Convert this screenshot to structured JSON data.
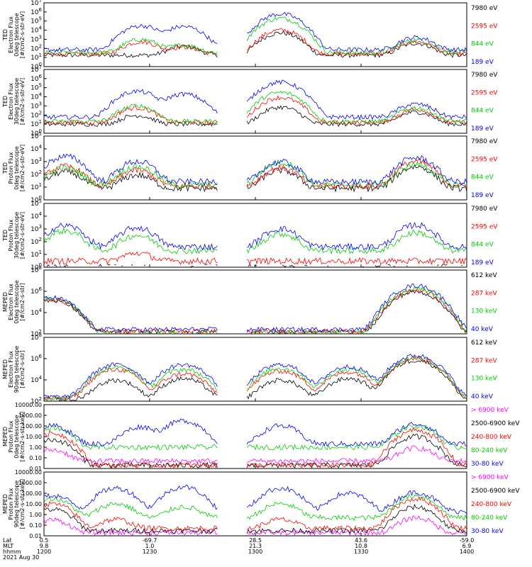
{
  "chart_data": [
    {
      "type": "line",
      "instrument": "TED",
      "ylabel": [
        "TED",
        "Electron Flux",
        "0deg telescope",
        "[#/cm2-s-str-eV]"
      ],
      "ylim": [
        1,
        10000000
      ],
      "yscale": "log",
      "ytick_labels": [
        "10^0",
        "10^1",
        "10^2",
        "10^3",
        "10^4",
        "10^5",
        "10^6",
        "10^7"
      ],
      "series": [
        {
          "name": "7980 eV",
          "color": "#000000",
          "base": 18,
          "peaks": [
            [
              0.33,
              150
            ],
            [
              0.56,
              5000
            ],
            [
              0.88,
              350
            ]
          ]
        },
        {
          "name": "2595 eV",
          "color": "#ff0000",
          "base": 25,
          "peaks": [
            [
              0.23,
              500
            ],
            [
              0.33,
              120
            ],
            [
              0.56,
              10000
            ],
            [
              0.88,
              500
            ]
          ]
        },
        {
          "name": "844 eV",
          "color": "#00cc00",
          "base": 35,
          "peaks": [
            [
              0.23,
              900
            ],
            [
              0.33,
              200
            ],
            [
              0.56,
              200000
            ],
            [
              0.88,
              800
            ]
          ]
        },
        {
          "name": "189 eV",
          "color": "#0000ff",
          "base": 70,
          "peaks": [
            [
              0.23,
              30000
            ],
            [
              0.33,
              25000
            ],
            [
              0.56,
              600000
            ],
            [
              0.88,
              1500
            ]
          ]
        }
      ]
    },
    {
      "type": "line",
      "instrument": "TED",
      "ylabel": [
        "TED",
        "Electron Flux",
        "30deg telescope",
        "[#/cm2-s-str-eV]"
      ],
      "ylim": [
        1,
        10000000
      ],
      "yscale": "log",
      "ytick_labels": [
        "10^0",
        "10^1",
        "10^2",
        "10^3",
        "10^4",
        "10^5",
        "10^6",
        "10^7"
      ],
      "series": [
        {
          "name": "7980 eV",
          "color": "#000000",
          "base": 10,
          "peaks": [
            [
              0.22,
              80
            ],
            [
              0.56,
              700
            ],
            [
              0.88,
              200
            ]
          ]
        },
        {
          "name": "2595 eV",
          "color": "#ff0000",
          "base": 15,
          "peaks": [
            [
              0.22,
              600
            ],
            [
              0.56,
              8000
            ],
            [
              0.88,
              400
            ]
          ]
        },
        {
          "name": "844 eV",
          "color": "#00cc00",
          "base": 20,
          "peaks": [
            [
              0.22,
              1000
            ],
            [
              0.56,
              30000
            ],
            [
              0.88,
              600
            ]
          ]
        },
        {
          "name": "189 eV",
          "color": "#0000ff",
          "base": 60,
          "peaks": [
            [
              0.22,
              40000
            ],
            [
              0.33,
              20000
            ],
            [
              0.56,
              400000
            ],
            [
              0.88,
              1500
            ]
          ]
        }
      ]
    },
    {
      "type": "line",
      "instrument": "TED",
      "ylabel": [
        "TED",
        "Proton Flux",
        "0deg telescope",
        "[#/cm2-s-str-eV]"
      ],
      "ylim": [
        1,
        100000
      ],
      "yscale": "log",
      "ytick_labels": [
        "10^0",
        "10^1",
        "10^2",
        "10^3",
        "10^4",
        "10^5"
      ],
      "series": [
        {
          "name": "7980 eV",
          "color": "#000000",
          "base": 8,
          "peaks": [
            [
              0.05,
              150
            ],
            [
              0.22,
              80
            ],
            [
              0.56,
              200
            ],
            [
              0.88,
              400
            ]
          ]
        },
        {
          "name": "2595 eV",
          "color": "#ff0000",
          "base": 12,
          "peaks": [
            [
              0.05,
              400
            ],
            [
              0.22,
              200
            ],
            [
              0.56,
              300
            ],
            [
              0.88,
              1000
            ]
          ]
        },
        {
          "name": "844 eV",
          "color": "#00cc00",
          "base": 15,
          "peaks": [
            [
              0.05,
              300
            ],
            [
              0.22,
              400
            ],
            [
              0.56,
              800
            ],
            [
              0.88,
              600
            ]
          ]
        },
        {
          "name": "189 eV",
          "color": "#0000ff",
          "base": 25,
          "peaks": [
            [
              0.05,
              2500
            ],
            [
              0.22,
              1000
            ],
            [
              0.56,
              900
            ],
            [
              0.88,
              2000
            ]
          ]
        }
      ]
    },
    {
      "type": "line",
      "instrument": "TED",
      "ylabel": [
        "TED",
        "Proton Flux",
        "30deg telescope",
        "[#/cm2-s-str-eV]"
      ],
      "ylim": [
        1,
        100000
      ],
      "yscale": "log",
      "ytick_labels": [
        "10^0",
        "10^1",
        "10^2",
        "10^3",
        "10^4",
        "10^5"
      ],
      "series": [
        {
          "name": "7980 eV",
          "color": "#000000",
          "base": 1,
          "peaks": []
        },
        {
          "name": "2595 eV",
          "color": "#ff0000",
          "base": 3,
          "peaks": [
            [
              0.22,
              10
            ]
          ]
        },
        {
          "name": "844 eV",
          "color": "#00cc00",
          "base": 20,
          "peaks": [
            [
              0.05,
              700
            ],
            [
              0.22,
              300
            ],
            [
              0.56,
              400
            ],
            [
              0.88,
              500
            ]
          ]
        },
        {
          "name": "189 eV",
          "color": "#0000ff",
          "base": 40,
          "peaks": [
            [
              0.05,
              1800
            ],
            [
              0.22,
              1200
            ],
            [
              0.56,
              1000
            ],
            [
              0.88,
              2000
            ]
          ]
        }
      ]
    },
    {
      "type": "line",
      "instrument": "MEPED",
      "ylabel": [
        "MEPED",
        "Electron Flux",
        "0deg telescope",
        "[#/cm2-s-str]"
      ],
      "ylim": [
        100,
        1000000000
      ],
      "yscale": "log",
      "ytick_labels": [
        "10^2",
        "10^4",
        "10^6",
        "10^8"
      ],
      "series": [
        {
          "name": "612 keV",
          "color": "#000000",
          "base": 150,
          "peaks": [
            [
              0.02,
              500000
            ],
            [
              0.88,
              4000000
            ]
          ]
        },
        {
          "name": "287 keV",
          "color": "#ff0000",
          "base": 200,
          "peaks": [
            [
              0.02,
              600000
            ],
            [
              0.88,
              6000000
            ]
          ]
        },
        {
          "name": "130 keV",
          "color": "#00cc00",
          "base": 150,
          "peaks": [
            [
              0.02,
              800000
            ],
            [
              0.88,
              10000000
            ]
          ]
        },
        {
          "name": "40 keV",
          "color": "#0000ff",
          "base": 300,
          "peaks": [
            [
              0.02,
              900000
            ],
            [
              0.88,
              20000000
            ]
          ]
        }
      ]
    },
    {
      "type": "line",
      "instrument": "MEPED",
      "ylabel": [
        "MEPED",
        "Electron Flux",
        "90deg telescope",
        "[#/cm2-s-str]"
      ],
      "ylim": [
        100,
        1000000000
      ],
      "yscale": "log",
      "ytick_labels": [
        "10^2",
        "10^4",
        "10^6",
        "10^8"
      ],
      "series": [
        {
          "name": "612 keV",
          "color": "#000000",
          "base": 150,
          "peaks": [
            [
              0.17,
              20000
            ],
            [
              0.33,
              30000
            ],
            [
              0.56,
              20000
            ],
            [
              0.72,
              30000
            ],
            [
              0.88,
              3000000
            ]
          ]
        },
        {
          "name": "287 keV",
          "color": "#ff0000",
          "base": 200,
          "peaks": [
            [
              0.17,
              300000
            ],
            [
              0.33,
              100000
            ],
            [
              0.56,
              200000
            ],
            [
              0.72,
              150000
            ],
            [
              0.88,
              5000000
            ]
          ]
        },
        {
          "name": "130 keV",
          "color": "#00cc00",
          "base": 200,
          "peaks": [
            [
              0.17,
              500000
            ],
            [
              0.33,
              300000
            ],
            [
              0.56,
              400000
            ],
            [
              0.72,
              300000
            ],
            [
              0.88,
              6000000
            ]
          ]
        },
        {
          "name": "40 keV",
          "color": "#0000ff",
          "base": 300,
          "peaks": [
            [
              0.17,
              1000000
            ],
            [
              0.33,
              1000000
            ],
            [
              0.56,
              1000000
            ],
            [
              0.72,
              600000
            ],
            [
              0.88,
              10000000
            ]
          ]
        }
      ]
    },
    {
      "type": "line",
      "instrument": "MEPED",
      "ylabel": [
        "MEPED",
        "Proton Flux",
        "0deg telescope",
        "[#/cm2-s-str-keV]"
      ],
      "ylim": [
        0.01,
        10000
      ],
      "yscale": "log",
      "ytick_labels": [
        "0.01",
        "0.10",
        "1.00",
        "10.00",
        "100.00",
        "1000.00",
        "10000.00"
      ],
      "series": [
        {
          "name": "> 6900 keV",
          "color": "#ff00ff",
          "base": 0.05,
          "peaks": [
            [
              0.02,
              0.5
            ],
            [
              0.88,
              0.8
            ]
          ]
        },
        {
          "name": "2500-6900 keV",
          "color": "#000000",
          "base": 0.02,
          "peaks": [
            [
              0.02,
              5
            ],
            [
              0.88,
              10
            ]
          ]
        },
        {
          "name": "240-800 keV",
          "color": "#ff0000",
          "base": 0.02,
          "peaks": [
            [
              0.02,
              20
            ],
            [
              0.88,
              40
            ]
          ]
        },
        {
          "name": "80-240 keV",
          "color": "#00cc00",
          "base": 1,
          "peaks": [
            [
              0.02,
              60
            ],
            [
              0.88,
              100
            ]
          ]
        },
        {
          "name": "30-80 keV",
          "color": "#0000ff",
          "base": 2,
          "peaks": [
            [
              0.02,
              100
            ],
            [
              0.23,
              80
            ],
            [
              0.33,
              300
            ],
            [
              0.56,
              100
            ],
            [
              0.88,
              150
            ]
          ]
        }
      ]
    },
    {
      "type": "line",
      "instrument": "MEPED",
      "ylabel": [
        "MEPED",
        "Proton Flux",
        "90deg telescope",
        "[#/cm2-s-str-keV]"
      ],
      "ylim": [
        0.01,
        10000
      ],
      "yscale": "log",
      "ytick_labels": [
        "0.01",
        "0.10",
        "1.00",
        "10.00",
        "100.00",
        "1000.00",
        "10000.00"
      ],
      "series": [
        {
          "name": "> 6900 keV",
          "color": "#ff00ff",
          "base": 0.02,
          "peaks": [
            [
              0.02,
              0.3
            ],
            [
              0.88,
              0.5
            ]
          ]
        },
        {
          "name": "2500-6900 keV",
          "color": "#000000",
          "base": 0.03,
          "peaks": [
            [
              0.02,
              3
            ],
            [
              0.88,
              5
            ]
          ]
        },
        {
          "name": "240-800 keV",
          "color": "#ff0000",
          "base": 0.05,
          "peaks": [
            [
              0.02,
              10
            ],
            [
              0.17,
              0.3
            ],
            [
              0.56,
              0.3
            ],
            [
              0.88,
              30
            ]
          ]
        },
        {
          "name": "80-240 keV",
          "color": "#00cc00",
          "base": 0.5,
          "peaks": [
            [
              0.02,
              30
            ],
            [
              0.17,
              10
            ],
            [
              0.33,
              5
            ],
            [
              0.56,
              10
            ],
            [
              0.88,
              60
            ]
          ]
        },
        {
          "name": "30-80 keV",
          "color": "#0000ff",
          "base": 2,
          "peaks": [
            [
              0.02,
              60
            ],
            [
              0.17,
              300
            ],
            [
              0.33,
              400
            ],
            [
              0.56,
              300
            ],
            [
              0.72,
              100
            ],
            [
              0.88,
              120
            ]
          ]
        }
      ]
    }
  ],
  "x_axis": {
    "rows": [
      {
        "label": "Lat",
        "values": [
          "0.5",
          "-69.7",
          "28.5",
          "43.6",
          "-59.0"
        ]
      },
      {
        "label": "MLT",
        "values": [
          "9.8",
          "1.0",
          "21.3",
          "10.8",
          "6.9"
        ]
      },
      {
        "label": "hhmm",
        "values": [
          "1200",
          "1230",
          "1300",
          "1330",
          "1400"
        ]
      }
    ],
    "date": "2021 Aug 30"
  }
}
